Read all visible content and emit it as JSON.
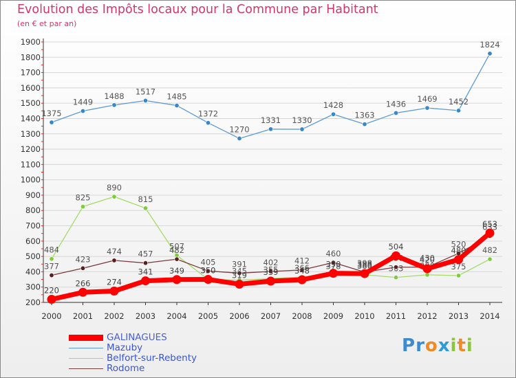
{
  "title": "Evolution des Impôts locaux pour la Commune par Habitant",
  "subtitle": "(en € et par an)",
  "brand": {
    "letters": [
      {
        "ch": "P",
        "color": "#3c8bd0"
      },
      {
        "ch": "r",
        "color": "#3c8bd0"
      },
      {
        "ch": "o",
        "color": "#f08a24"
      },
      {
        "ch": "x",
        "color": "#2e9bd6"
      },
      {
        "ch": "i",
        "color": "#8cc63f"
      },
      {
        "ch": "t",
        "color": "#f08a24"
      },
      {
        "ch": "i",
        "color": "#8cc63f"
      }
    ]
  },
  "chart_data": {
    "type": "line",
    "x": [
      "2000",
      "2001",
      "2002",
      "2003",
      "2004",
      "2005",
      "2006",
      "2007",
      "2008",
      "2009",
      "2010",
      "2011",
      "2012",
      "2013",
      "2014"
    ],
    "ylim": [
      200,
      1900
    ],
    "yticks": [
      200,
      300,
      400,
      500,
      600,
      700,
      800,
      900,
      1000,
      1100,
      1200,
      1300,
      1400,
      1500,
      1600,
      1700,
      1800,
      1900
    ],
    "grid": true,
    "legend_position": "bottom-left",
    "series": [
      {
        "name": "Mazuby",
        "color": "#5b9bd5",
        "marker": "#3a87c8",
        "label_color": "#555555",
        "values": [
          1375,
          1449,
          1488,
          1517,
          1485,
          1372,
          1270,
          1331,
          1330,
          1428,
          1363,
          1436,
          1469,
          1452,
          1824
        ],
        "labels": [
          "1375",
          "1449",
          "1488",
          "1517",
          "1485",
          "1372",
          "1270",
          "1331",
          "1330",
          "1428",
          "1363",
          "1436",
          "1469",
          "1452",
          "1824"
        ]
      },
      {
        "name": "Belfort-sur-Rebenty",
        "color": "#a6d96a",
        "marker": "#7dcc3a",
        "label_color": "#555555",
        "values": [
          484,
          825,
          890,
          815,
          507,
          350,
          345,
          355,
          366,
          378,
          380,
          363,
          380,
          375,
          482
        ],
        "labels": [
          "484",
          "825",
          "890",
          "815",
          "507",
          "350",
          "345",
          "355",
          "366",
          "378",
          "380",
          "363",
          "380",
          "375",
          "482"
        ]
      },
      {
        "name": "Rodome",
        "color": "#7a3b3b",
        "marker": "#5a1e1e",
        "label_color": "#555555",
        "values": [
          377,
          423,
          474,
          457,
          482,
          405,
          391,
          402,
          412,
          460,
          398,
          430,
          430,
          520,
          633
        ],
        "labels": [
          "377",
          "423",
          "474",
          "457",
          "482",
          "405",
          "391",
          "402",
          "412",
          "460",
          "398",
          "430",
          "430",
          "520",
          "633"
        ]
      },
      {
        "name": "GALINAGUES",
        "color": "#ff0000",
        "marker": "#ff0000",
        "label_color": "#444444",
        "values": [
          220,
          266,
          274,
          341,
          349,
          350,
          319,
          339,
          348,
          390,
          388,
          504,
          420,
          480,
          653
        ],
        "labels": [
          "220",
          "266",
          "274",
          "341",
          "349",
          "350",
          "319",
          "339",
          "348",
          "390",
          "388",
          "504",
          "420",
          "480",
          "653"
        ]
      }
    ],
    "legend_order": [
      "GALINAGUES",
      "Mazuby",
      "Belfort-sur-Rebenty",
      "Rodome"
    ]
  }
}
